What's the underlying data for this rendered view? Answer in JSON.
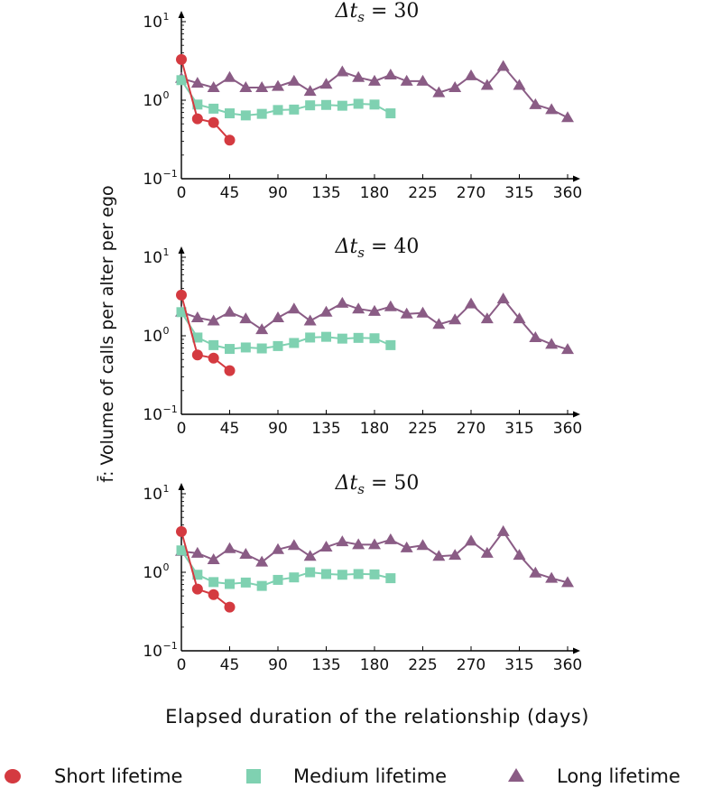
{
  "chart_data": [
    {
      "type": "line",
      "title": "Δt_s = 30",
      "title_main": "Δt",
      "title_sub": "s",
      "title_value": " = 30",
      "x_ticks": [
        0,
        45,
        90,
        135,
        180,
        225,
        270,
        315,
        360
      ],
      "y_scale": "log",
      "y_ticks": [
        {
          "base": "10",
          "exp": "1"
        },
        {
          "base": "10",
          "exp": "0"
        },
        {
          "base": "10",
          "exp": "−1"
        }
      ],
      "xlim": [
        0,
        360
      ],
      "ylim": [
        0.1,
        10
      ],
      "series": [
        {
          "key": "short",
          "name": "Short lifetime",
          "color": "#d43a40",
          "marker": "circle",
          "x": [
            0,
            15,
            30,
            45
          ],
          "y": [
            3.3,
            0.58,
            0.52,
            0.31
          ]
        },
        {
          "key": "medium",
          "name": "Medium lifetime",
          "color": "#7fd1b1",
          "marker": "square",
          "x": [
            0,
            15,
            30,
            45,
            60,
            75,
            90,
            105,
            120,
            135,
            150,
            165,
            180,
            195
          ],
          "y": [
            1.8,
            0.88,
            0.78,
            0.68,
            0.64,
            0.67,
            0.75,
            0.76,
            0.86,
            0.87,
            0.85,
            0.9,
            0.88,
            0.68
          ]
        },
        {
          "key": "long",
          "name": "Long lifetime",
          "color": "#8a5c85",
          "marker": "triangle",
          "x": [
            0,
            15,
            30,
            45,
            60,
            75,
            90,
            105,
            120,
            135,
            150,
            165,
            180,
            195,
            210,
            225,
            240,
            255,
            270,
            285,
            300,
            315,
            330,
            345,
            360
          ],
          "y": [
            1.9,
            1.65,
            1.45,
            1.95,
            1.45,
            1.45,
            1.5,
            1.75,
            1.3,
            1.6,
            2.3,
            1.95,
            1.75,
            2.1,
            1.75,
            1.75,
            1.25,
            1.45,
            2.05,
            1.55,
            2.7,
            1.55,
            0.88,
            0.76,
            0.6
          ]
        }
      ]
    },
    {
      "type": "line",
      "title": "Δt_s = 40",
      "title_main": "Δt",
      "title_sub": "s",
      "title_value": " = 40",
      "x_ticks": [
        0,
        45,
        90,
        135,
        180,
        225,
        270,
        315,
        360
      ],
      "y_scale": "log",
      "y_ticks": [
        {
          "base": "10",
          "exp": "1"
        },
        {
          "base": "10",
          "exp": "0"
        },
        {
          "base": "10",
          "exp": "−1"
        }
      ],
      "xlim": [
        0,
        360
      ],
      "ylim": [
        0.1,
        10
      ],
      "series": [
        {
          "key": "short",
          "name": "Short lifetime",
          "color": "#d43a40",
          "marker": "circle",
          "x": [
            0,
            15,
            30,
            45
          ],
          "y": [
            3.3,
            0.57,
            0.52,
            0.36
          ]
        },
        {
          "key": "medium",
          "name": "Medium lifetime",
          "color": "#7fd1b1",
          "marker": "square",
          "x": [
            0,
            15,
            30,
            45,
            60,
            75,
            90,
            105,
            120,
            135,
            150,
            165,
            180,
            195
          ],
          "y": [
            2.0,
            0.95,
            0.76,
            0.68,
            0.71,
            0.69,
            0.74,
            0.81,
            0.95,
            0.97,
            0.92,
            0.94,
            0.93,
            0.76
          ]
        },
        {
          "key": "long",
          "name": "Long lifetime",
          "color": "#8a5c85",
          "marker": "triangle",
          "x": [
            0,
            15,
            30,
            45,
            60,
            75,
            90,
            105,
            120,
            135,
            150,
            165,
            180,
            195,
            210,
            225,
            240,
            255,
            270,
            285,
            300,
            315,
            330,
            345,
            360
          ],
          "y": [
            2.0,
            1.7,
            1.55,
            2.0,
            1.65,
            1.2,
            1.7,
            2.2,
            1.55,
            2.0,
            2.6,
            2.2,
            2.05,
            2.35,
            1.9,
            1.95,
            1.4,
            1.6,
            2.55,
            1.65,
            2.95,
            1.65,
            0.95,
            0.78,
            0.67
          ]
        }
      ]
    },
    {
      "type": "line",
      "title": "Δt_s = 50",
      "title_main": "Δt",
      "title_sub": "s",
      "title_value": " = 50",
      "x_ticks": [
        0,
        45,
        90,
        135,
        180,
        225,
        270,
        315,
        360
      ],
      "y_scale": "log",
      "y_ticks": [
        {
          "base": "10",
          "exp": "1"
        },
        {
          "base": "10",
          "exp": "0"
        },
        {
          "base": "10",
          "exp": "−1"
        }
      ],
      "xlim": [
        0,
        360
      ],
      "ylim": [
        0.1,
        10
      ],
      "series": [
        {
          "key": "short",
          "name": "Short lifetime",
          "color": "#d43a40",
          "marker": "circle",
          "x": [
            0,
            15,
            30,
            45
          ],
          "y": [
            3.3,
            0.61,
            0.52,
            0.36
          ]
        },
        {
          "key": "medium",
          "name": "Medium lifetime",
          "color": "#7fd1b1",
          "marker": "square",
          "x": [
            0,
            15,
            30,
            45,
            60,
            75,
            90,
            105,
            120,
            135,
            150,
            165,
            180,
            195
          ],
          "y": [
            1.9,
            0.93,
            0.75,
            0.71,
            0.74,
            0.67,
            0.8,
            0.86,
            1.0,
            0.95,
            0.93,
            0.95,
            0.94,
            0.84
          ]
        },
        {
          "key": "long",
          "name": "Long lifetime",
          "color": "#8a5c85",
          "marker": "triangle",
          "x": [
            0,
            15,
            30,
            45,
            60,
            75,
            90,
            105,
            120,
            135,
            150,
            165,
            180,
            195,
            210,
            225,
            240,
            255,
            270,
            285,
            300,
            315,
            330,
            345,
            360
          ],
          "y": [
            1.85,
            1.75,
            1.45,
            2.0,
            1.7,
            1.35,
            1.95,
            2.2,
            1.6,
            2.1,
            2.45,
            2.25,
            2.25,
            2.6,
            2.05,
            2.2,
            1.6,
            1.65,
            2.5,
            1.75,
            3.3,
            1.65,
            0.98,
            0.84,
            0.74
          ]
        }
      ]
    }
  ],
  "ylabel": "f̄: Volume of calls per alter per ego",
  "xlabel": "Elapsed duration of the relationship (days)",
  "legend": {
    "placement": "bottom",
    "items": [
      {
        "key": "short",
        "label": "Short lifetime",
        "color": "#d43a40",
        "marker": "circle"
      },
      {
        "key": "medium",
        "label": "Medium lifetime",
        "color": "#7fd1b1",
        "marker": "square"
      },
      {
        "key": "long",
        "label": "Long lifetime",
        "color": "#8a5c85",
        "marker": "triangle"
      }
    ]
  }
}
